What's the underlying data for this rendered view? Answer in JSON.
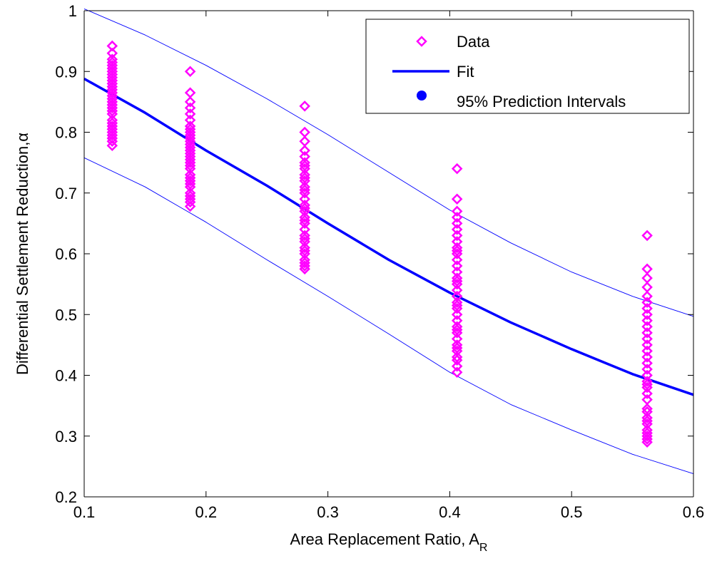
{
  "chart_data": {
    "type": "scatter",
    "xlabel": "Area Replacement Ratio, A",
    "xlabel_subscript": "R",
    "ylabel": "Differential Settlement Reduction,",
    "ylabel_symbol": "α",
    "xlim": [
      0.1,
      0.6
    ],
    "ylim": [
      0.2,
      1.0
    ],
    "x_ticks": [
      "0.1",
      "0.2",
      "0.3",
      "0.4",
      "0.5",
      "0.6"
    ],
    "y_ticks": [
      "0.2",
      "0.3",
      "0.4",
      "0.5",
      "0.6",
      "0.7",
      "0.8",
      "0.9",
      "1"
    ],
    "grid": false,
    "legend": {
      "position": "top-right",
      "entries": [
        {
          "label": "Data",
          "marker": "diamond",
          "color": "#ff00ff"
        },
        {
          "label": "Fit",
          "marker": "line",
          "color": "#0000ff"
        },
        {
          "label": "95% Prediction Intervals",
          "marker": "dot",
          "color": "#0000ff"
        }
      ]
    },
    "series": [
      {
        "kind": "scatter",
        "color": "#ff00ff",
        "groups": [
          {
            "x": 0.123,
            "y": [
              0.778,
              0.785,
              0.79,
              0.795,
              0.8,
              0.805,
              0.81,
              0.815,
              0.82,
              0.83,
              0.835,
              0.84,
              0.845,
              0.85,
              0.855,
              0.86,
              0.865,
              0.87,
              0.875,
              0.88,
              0.885,
              0.89,
              0.895,
              0.9,
              0.905,
              0.91,
              0.915,
              0.92,
              0.93,
              0.942
            ]
          },
          {
            "x": 0.187,
            "y": [
              0.678,
              0.685,
              0.69,
              0.695,
              0.7,
              0.71,
              0.715,
              0.72,
              0.725,
              0.73,
              0.74,
              0.745,
              0.75,
              0.755,
              0.76,
              0.765,
              0.77,
              0.775,
              0.78,
              0.785,
              0.79,
              0.795,
              0.8,
              0.805,
              0.81,
              0.82,
              0.83,
              0.84,
              0.85,
              0.865,
              0.9
            ]
          },
          {
            "x": 0.281,
            "y": [
              0.575,
              0.58,
              0.585,
              0.59,
              0.6,
              0.605,
              0.61,
              0.62,
              0.625,
              0.63,
              0.64,
              0.65,
              0.655,
              0.66,
              0.67,
              0.675,
              0.68,
              0.69,
              0.7,
              0.705,
              0.71,
              0.72,
              0.725,
              0.73,
              0.74,
              0.745,
              0.75,
              0.76,
              0.77,
              0.785,
              0.8,
              0.843
            ]
          },
          {
            "x": 0.406,
            "y": [
              0.405,
              0.415,
              0.425,
              0.43,
              0.44,
              0.445,
              0.45,
              0.46,
              0.47,
              0.475,
              0.48,
              0.49,
              0.5,
              0.51,
              0.515,
              0.52,
              0.53,
              0.54,
              0.55,
              0.555,
              0.56,
              0.57,
              0.58,
              0.59,
              0.6,
              0.605,
              0.61,
              0.62,
              0.63,
              0.64,
              0.65,
              0.66,
              0.67,
              0.69,
              0.74
            ]
          },
          {
            "x": 0.562,
            "y": [
              0.29,
              0.295,
              0.3,
              0.305,
              0.31,
              0.32,
              0.325,
              0.33,
              0.34,
              0.345,
              0.36,
              0.37,
              0.38,
              0.385,
              0.39,
              0.4,
              0.41,
              0.42,
              0.43,
              0.44,
              0.45,
              0.46,
              0.47,
              0.48,
              0.49,
              0.5,
              0.51,
              0.52,
              0.53,
              0.545,
              0.56,
              0.575,
              0.63
            ]
          }
        ]
      },
      {
        "kind": "line",
        "role": "fit",
        "color": "#0000ff",
        "x": [
          0.1,
          0.15,
          0.2,
          0.25,
          0.3,
          0.35,
          0.4,
          0.45,
          0.5,
          0.55,
          0.6
        ],
        "y": [
          0.888,
          0.832,
          0.77,
          0.712,
          0.65,
          0.59,
          0.536,
          0.487,
          0.443,
          0.402,
          0.368
        ]
      },
      {
        "kind": "line",
        "role": "prediction-upper",
        "color": "#0000ff",
        "x": [
          0.1,
          0.15,
          0.2,
          0.25,
          0.3,
          0.35,
          0.4,
          0.45,
          0.5,
          0.55,
          0.6
        ],
        "y": [
          1.003,
          0.96,
          0.91,
          0.855,
          0.796,
          0.734,
          0.672,
          0.618,
          0.57,
          0.53,
          0.497
        ]
      },
      {
        "kind": "line",
        "role": "prediction-lower",
        "color": "#0000ff",
        "x": [
          0.1,
          0.15,
          0.2,
          0.25,
          0.3,
          0.35,
          0.4,
          0.45,
          0.5,
          0.55,
          0.6
        ],
        "y": [
          0.758,
          0.71,
          0.652,
          0.59,
          0.53,
          0.468,
          0.405,
          0.352,
          0.31,
          0.27,
          0.238
        ]
      }
    ]
  }
}
